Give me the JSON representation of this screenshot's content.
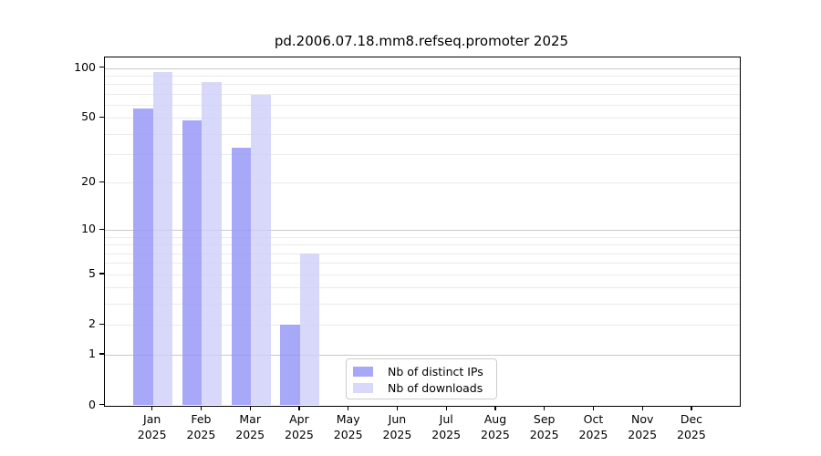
{
  "chart_data": {
    "type": "bar",
    "title": "pd.2006.07.18.mm8.refseq.promoter 2025",
    "categories": [
      "Jan",
      "Feb",
      "Mar",
      "Apr",
      "May",
      "Jun",
      "Jul",
      "Aug",
      "Sep",
      "Oct",
      "Nov",
      "Dec"
    ],
    "year_label": "2025",
    "series": [
      {
        "name": "Nb of distinct IPs",
        "color": "rgba(153,153,247,0.85)",
        "values": [
          57,
          48,
          33,
          2,
          0,
          0,
          0,
          0,
          0,
          0,
          0,
          0
        ]
      },
      {
        "name": "Nb of downloads",
        "color": "rgba(205,205,250,0.78)",
        "values": [
          95,
          82,
          69,
          7,
          0,
          0,
          0,
          0,
          0,
          0,
          0,
          0
        ]
      }
    ],
    "yscale": "log1p",
    "ylim": [
      0,
      100
    ],
    "xlabel": "",
    "ylabel": "",
    "yticks": [
      0,
      1,
      2,
      5,
      10,
      20,
      50,
      100
    ],
    "minor_gridlines": [
      2,
      3,
      4,
      5,
      6,
      7,
      8,
      9,
      20,
      30,
      40,
      50,
      60,
      70,
      80,
      90
    ],
    "major_gridlines": [
      1,
      10,
      100
    ],
    "grid": true,
    "legend_position": "lower center"
  },
  "colors": {
    "major_grid": "#c9c9c9",
    "minor_grid": "#ebebeb",
    "spine": "#000000",
    "text": "#000000",
    "legend_border": "#cccccc"
  }
}
